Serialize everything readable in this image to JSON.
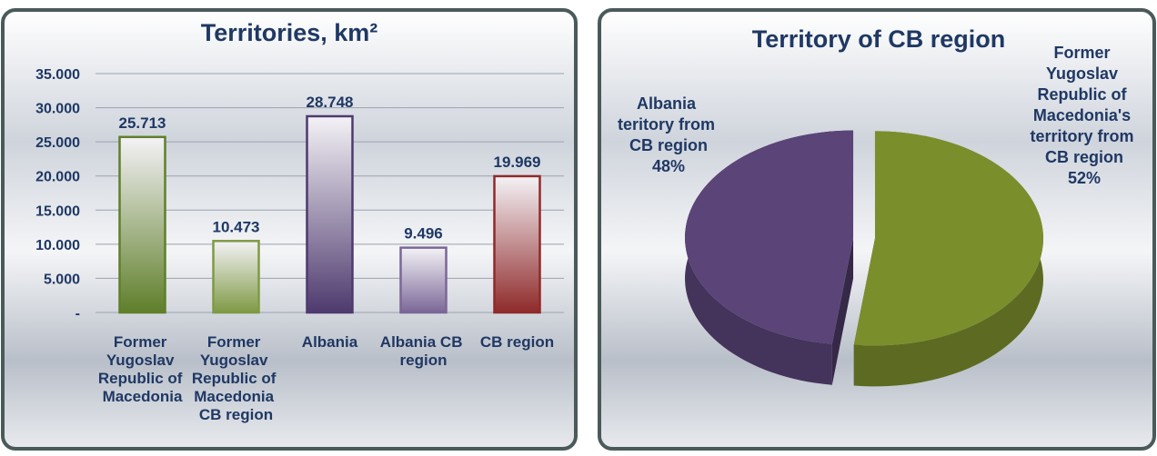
{
  "chart_data": [
    {
      "type": "bar",
      "title": "Territories, km²",
      "categories": [
        "Former Yugoslav Republic of Macedonia",
        "Former Yugoslav Republic of Macedonia CB region",
        "Albania",
        "Albania CB region",
        "CB region"
      ],
      "values": [
        25713,
        10473,
        28748,
        9496,
        19969
      ],
      "value_labels": [
        "25.713",
        "10.473",
        "28.748",
        "9.496",
        "19.969"
      ],
      "colors": [
        "#5f7f2a",
        "#7f9a45",
        "#4e3a6e",
        "#7b6797",
        "#8f2a2a"
      ],
      "ylim": [
        0,
        35000
      ],
      "yticks": [
        {
          "value": 0,
          "label": "-"
        },
        {
          "value": 5000,
          "label": "5.000"
        },
        {
          "value": 10000,
          "label": "10.000"
        },
        {
          "value": 15000,
          "label": "15.000"
        },
        {
          "value": 20000,
          "label": "20.000"
        },
        {
          "value": 25000,
          "label": "25.000"
        },
        {
          "value": 30000,
          "label": "30.000"
        },
        {
          "value": 35000,
          "label": "35.000"
        }
      ],
      "grid": true
    },
    {
      "type": "pie",
      "title": "Territory of CB region",
      "categories": [
        "Former Yugoslav Republic of Macedonia's territory from CB region",
        "Albania teritory from CB region"
      ],
      "values": [
        52,
        48
      ],
      "value_labels": [
        "52%",
        "48%"
      ],
      "colors": [
        "#7b8e2c",
        "#5a4478"
      ]
    }
  ]
}
